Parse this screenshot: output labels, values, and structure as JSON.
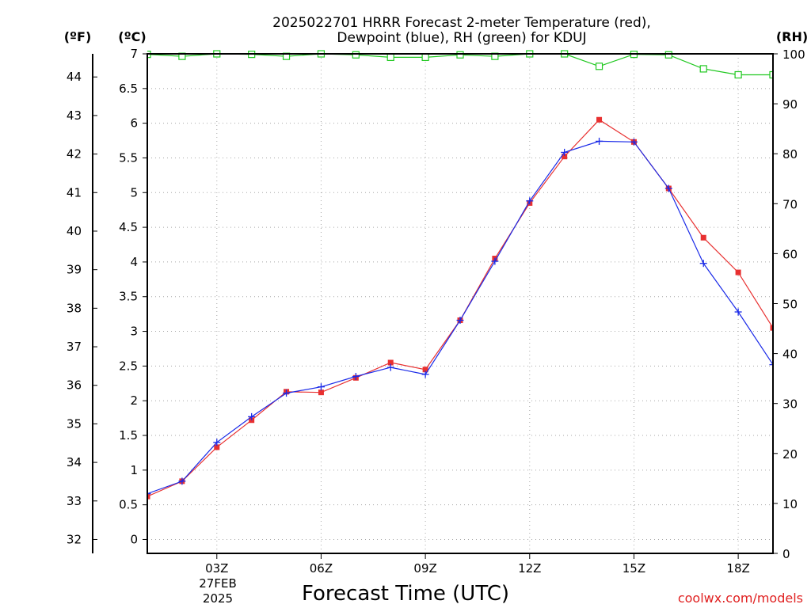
{
  "chart_data": {
    "type": "line",
    "title_lines": [
      "2025022701 HRRR Forecast 2-meter Temperature (red),",
      "Dewpoint (blue), RH (green) for KDUJ"
    ],
    "xlabel": "Forecast Time (UTC)",
    "unit_labels": {
      "fahrenheit": "(ºF)",
      "celsius": "(ºC)",
      "rh": "(RH)"
    },
    "credit": "coolwx.com/models",
    "x_ticks": [
      {
        "hour": 3,
        "label": "03Z"
      },
      {
        "hour": 6,
        "label": "06Z"
      },
      {
        "hour": 9,
        "label": "09Z"
      },
      {
        "hour": 12,
        "label": "12Z"
      },
      {
        "hour": 15,
        "label": "15Z"
      },
      {
        "hour": 18,
        "label": "18Z"
      }
    ],
    "date_label": [
      "27FEB",
      "2025"
    ],
    "xlim": [
      1,
      19
    ],
    "hours": [
      1,
      2,
      3,
      4,
      5,
      6,
      7,
      8,
      9,
      10,
      11,
      12,
      13,
      14,
      15,
      16,
      17,
      18,
      19
    ],
    "celsius_axis": {
      "ylim": [
        -0.2,
        7
      ],
      "ticks": [
        0,
        0.5,
        1,
        1.5,
        2,
        2.5,
        3,
        3.5,
        4,
        4.5,
        5,
        5.5,
        6,
        6.5,
        7
      ]
    },
    "fahrenheit_ticks": [
      32,
      33,
      34,
      35,
      36,
      37,
      38,
      39,
      40,
      41,
      42,
      43,
      44
    ],
    "rh_axis": {
      "ylim": [
        0,
        100
      ],
      "ticks": [
        0,
        10,
        20,
        30,
        40,
        50,
        60,
        70,
        80,
        90,
        100
      ]
    },
    "grid": true,
    "series": [
      {
        "name": "Temperature",
        "axis": "celsius",
        "color": "#e83030",
        "marker": "filled-square",
        "values": [
          0.62,
          0.84,
          1.33,
          1.72,
          2.13,
          2.12,
          2.33,
          2.55,
          2.45,
          3.16,
          4.05,
          4.85,
          5.52,
          6.05,
          5.73,
          5.06,
          4.35,
          3.85,
          3.05
        ]
      },
      {
        "name": "Dewpoint",
        "axis": "celsius",
        "color": "#1a2ae8",
        "marker": "plus",
        "values": [
          0.66,
          0.84,
          1.4,
          1.77,
          2.11,
          2.2,
          2.35,
          2.48,
          2.38,
          3.16,
          4.01,
          4.88,
          5.58,
          5.74,
          5.73,
          5.06,
          3.98,
          3.28,
          2.52
        ]
      },
      {
        "name": "RH",
        "axis": "rh",
        "color": "#20c820",
        "marker": "open-square",
        "values": [
          99.9,
          99.5,
          100,
          99.9,
          99.5,
          100,
          99.8,
          99.3,
          99.3,
          99.8,
          99.5,
          100,
          100,
          97.5,
          99.9,
          99.8,
          97,
          95.8,
          95.8
        ]
      }
    ]
  }
}
